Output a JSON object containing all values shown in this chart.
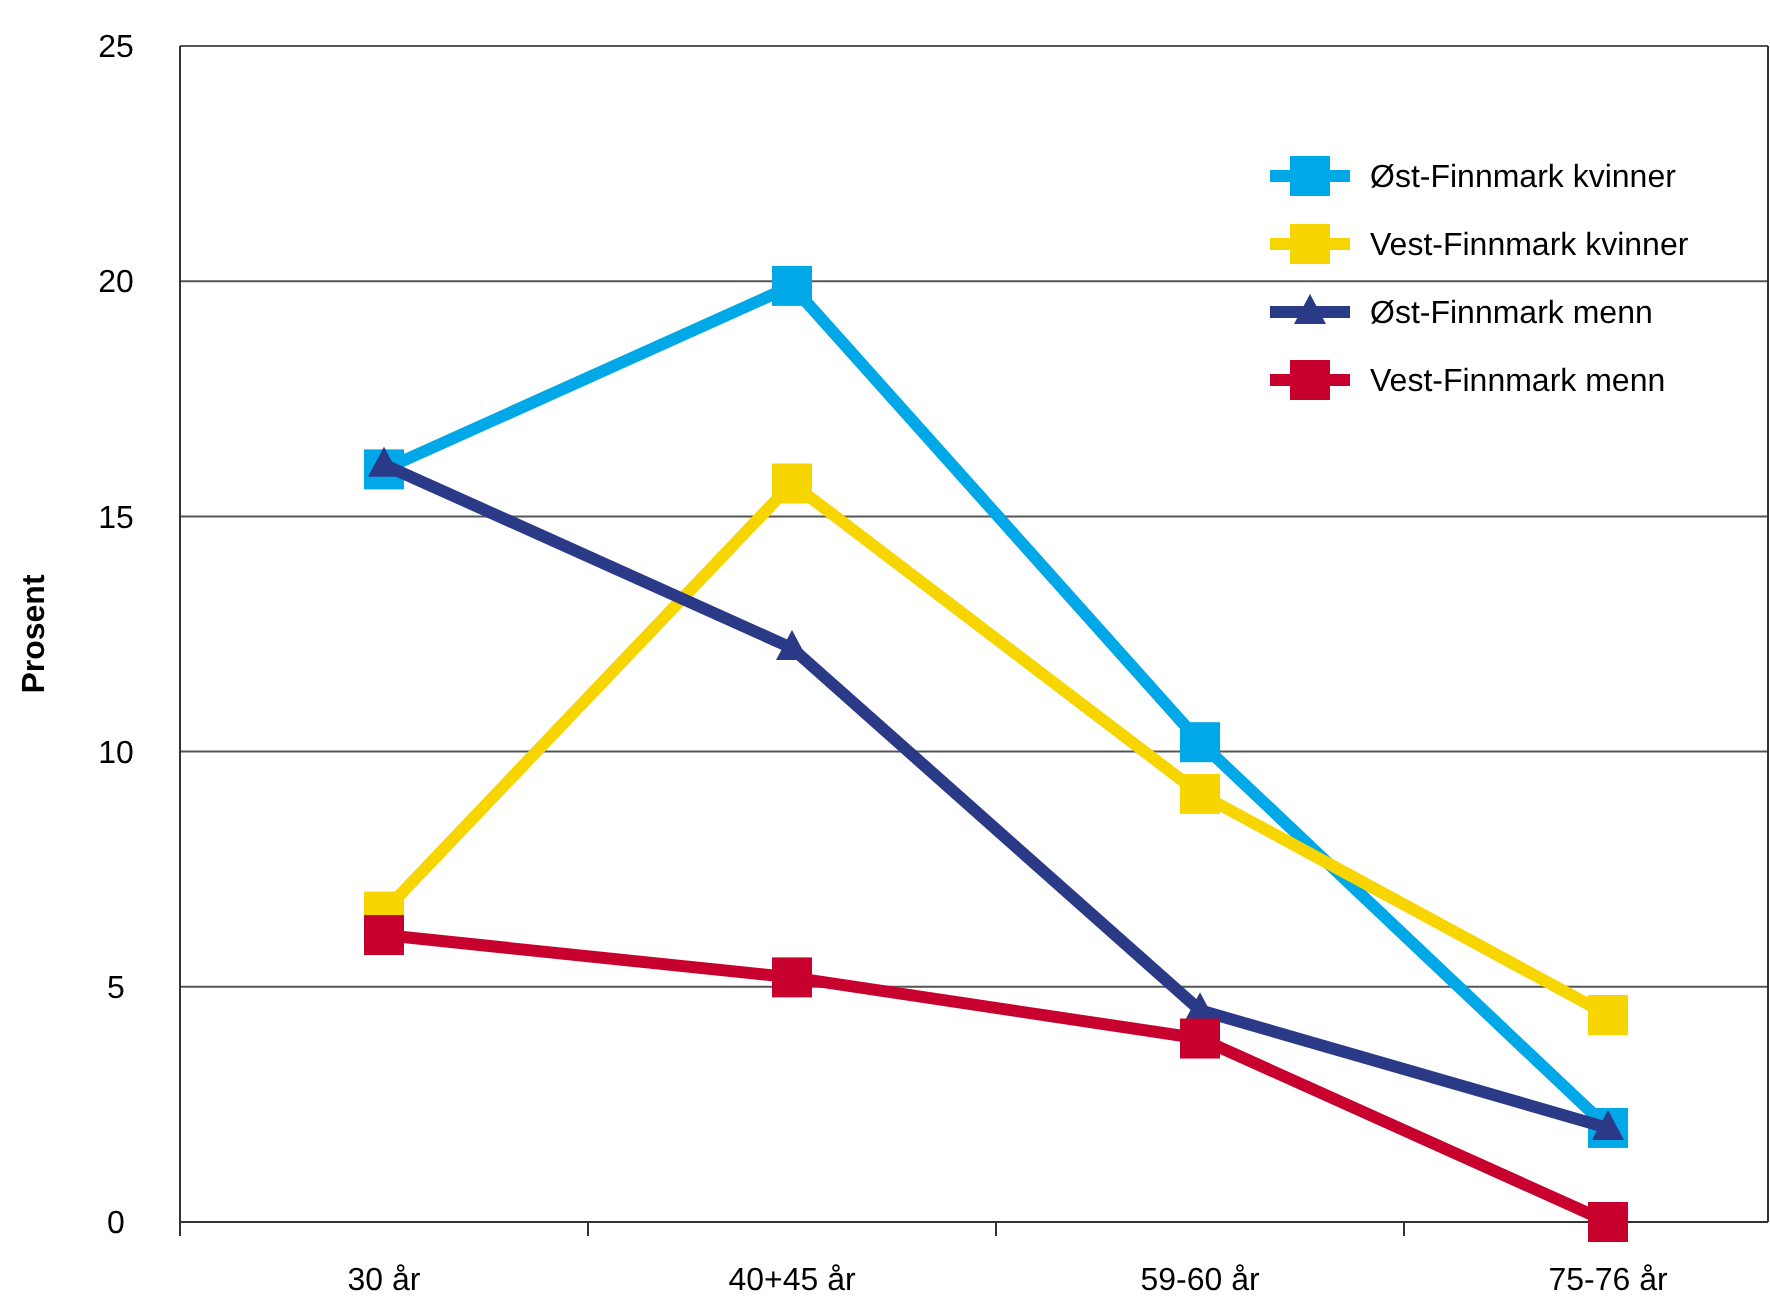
{
  "chart_data": {
    "type": "line",
    "ylabel": "Prosent",
    "categories": [
      "30 år",
      "40+45 år",
      "59-60 år",
      "75-76 år"
    ],
    "series": [
      {
        "name": "Øst-Finnmark kvinner",
        "color": "#00a8e8",
        "marker": "square",
        "values": [
          16.0,
          19.9,
          10.2,
          2.0
        ]
      },
      {
        "name": "Vest-Finnmark kvinner",
        "color": "#f7d500",
        "marker": "square",
        "values": [
          6.6,
          15.7,
          9.1,
          4.4
        ]
      },
      {
        "name": "Øst-Finnmark menn",
        "color": "#2b3a87",
        "marker": "triangle",
        "values": [
          16.1,
          12.2,
          4.5,
          2.0
        ]
      },
      {
        "name": "Vest-Finnmark menn",
        "color": "#c8002d",
        "marker": "square",
        "values": [
          6.1,
          5.2,
          3.9,
          0
        ]
      }
    ],
    "ylim": [
      0,
      25
    ],
    "yticks": [
      0,
      5,
      10,
      15,
      20,
      25
    ],
    "grid": "y",
    "legend": "top right"
  }
}
